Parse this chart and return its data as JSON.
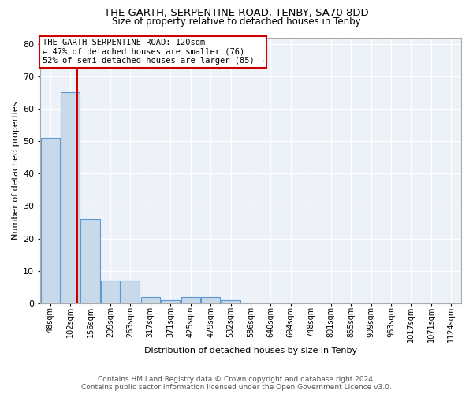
{
  "title1": "THE GARTH, SERPENTINE ROAD, TENBY, SA70 8DD",
  "title2": "Size of property relative to detached houses in Tenby",
  "xlabel": "Distribution of detached houses by size in Tenby",
  "ylabel": "Number of detached properties",
  "categories": [
    "48sqm",
    "102sqm",
    "156sqm",
    "209sqm",
    "263sqm",
    "317sqm",
    "371sqm",
    "425sqm",
    "479sqm",
    "532sqm",
    "586sqm",
    "640sqm",
    "694sqm",
    "748sqm",
    "801sqm",
    "855sqm",
    "909sqm",
    "963sqm",
    "1017sqm",
    "1071sqm",
    "1124sqm"
  ],
  "values": [
    51,
    65,
    26,
    7,
    7,
    2,
    1,
    2,
    2,
    1,
    0,
    0,
    0,
    0,
    0,
    0,
    0,
    0,
    0,
    0,
    0
  ],
  "bar_color": "#c8d9ea",
  "bar_edge_color": "#5b9bd5",
  "ylim": [
    0,
    82
  ],
  "yticks": [
    0,
    10,
    20,
    30,
    40,
    50,
    60,
    70,
    80
  ],
  "red_line_x": 1.36,
  "annotation_line1": "THE GARTH SERPENTINE ROAD: 120sqm",
  "annotation_line2": "← 47% of detached houses are smaller (76)",
  "annotation_line3": "52% of semi-detached houses are larger (85) →",
  "annotation_box_color": "#ffffff",
  "annotation_border_color": "#cc0000",
  "footer_line1": "Contains HM Land Registry data © Crown copyright and database right 2024.",
  "footer_line2": "Contains public sector information licensed under the Open Government Licence v3.0.",
  "background_color": "#edf2f8",
  "grid_color": "#ffffff",
  "title1_fontsize": 9.5,
  "title2_fontsize": 8.5,
  "xlabel_fontsize": 8,
  "ylabel_fontsize": 8,
  "annotation_fontsize": 7.5,
  "footer_fontsize": 6.5,
  "xtick_fontsize": 7,
  "ytick_fontsize": 8
}
